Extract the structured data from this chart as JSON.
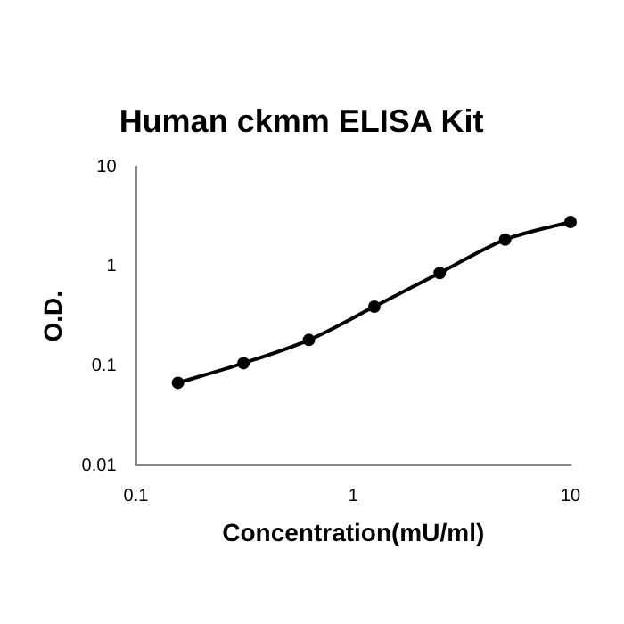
{
  "chart_data": {
    "type": "line",
    "title": "Human ckmm ELISA Kit",
    "xlabel": "Concentration(mU/ml)",
    "ylabel": "O.D.",
    "series": [
      {
        "color": "#000000",
        "x": [
          0.156,
          0.3125,
          0.625,
          1.25,
          2.5,
          5,
          10
        ],
        "values": [
          0.068,
          0.107,
          0.183,
          0.395,
          0.86,
          1.86,
          2.8
        ]
      }
    ],
    "log": "xy",
    "xlim": [
      0.1,
      10
    ],
    "ylim": [
      0.01,
      10
    ],
    "xticks": [
      0.1,
      1,
      10
    ],
    "yticks": [
      0.01,
      0.1,
      1,
      10
    ],
    "grid": false,
    "legend": false,
    "marker": "circle",
    "line_style": "solid"
  }
}
